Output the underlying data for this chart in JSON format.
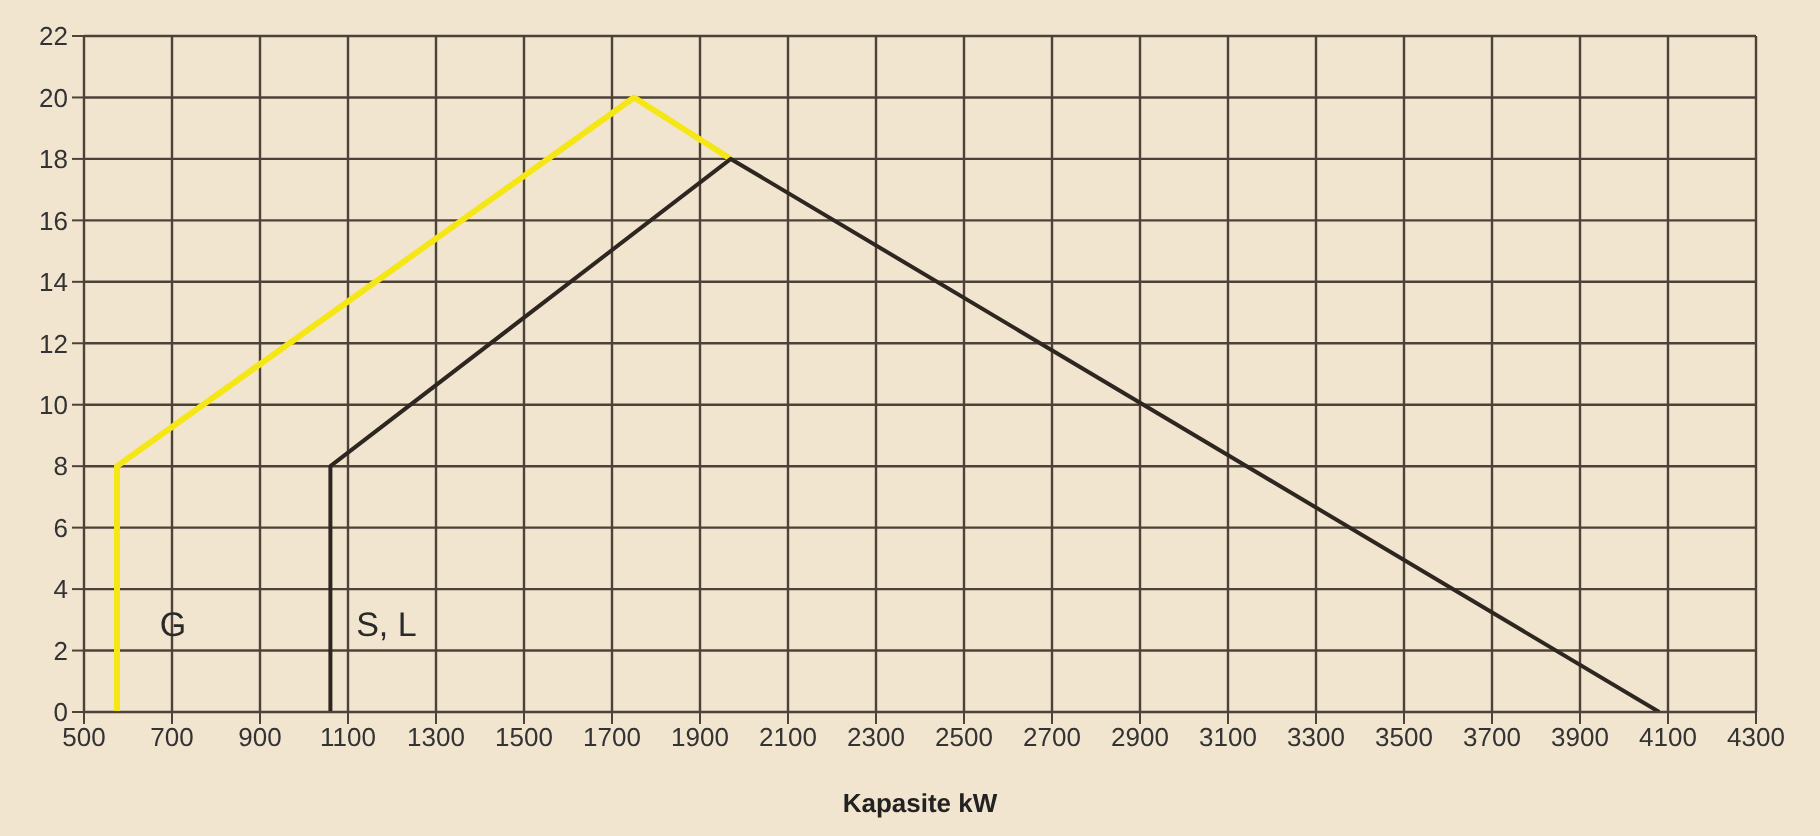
{
  "chart_data": {
    "type": "line",
    "xlabel": "Kapasite  kW",
    "series": [
      {
        "name": "G",
        "color": "#f5e616",
        "x": [
          575,
          575,
          1750,
          1970
        ],
        "values": [
          0,
          8,
          20,
          18
        ]
      },
      {
        "name": "S, L",
        "color": "#2e2620",
        "x": [
          1060,
          1060,
          1970,
          4080
        ],
        "values": [
          0,
          8,
          18,
          0
        ]
      }
    ],
    "xlim": [
      500,
      4300
    ],
    "xticks": [
      500,
      700,
      900,
      1100,
      1300,
      1500,
      1700,
      1900,
      2100,
      2300,
      2500,
      2700,
      2900,
      3100,
      3300,
      3500,
      3700,
      3900,
      4100,
      4300
    ],
    "ylim": [
      0,
      22
    ],
    "yticks": [
      0,
      2,
      4,
      6,
      8,
      10,
      12,
      14,
      16,
      18,
      20,
      22
    ],
    "grid": true,
    "legend": false,
    "marker": "none",
    "line_style": "solid"
  }
}
